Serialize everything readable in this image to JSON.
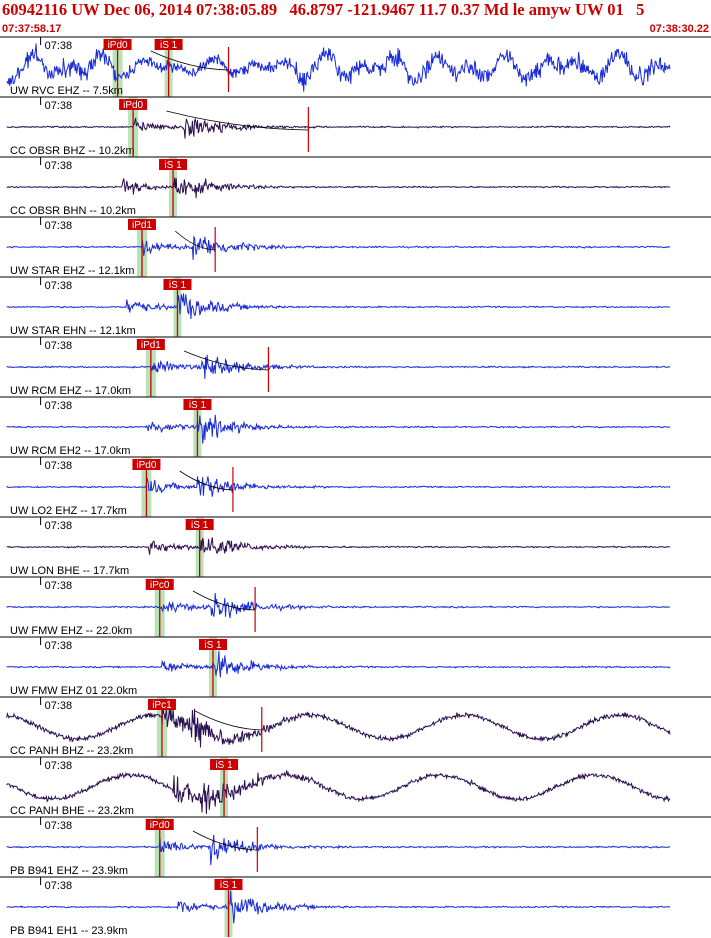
{
  "header": {
    "title": "60942116 UW Dec 06, 2014 07:38:05.89   46.8797 -121.9467 11.7 0.37 Md le amyw UW 01   5",
    "start_time": "07:37:58.17",
    "end_time": "07:38:30.22"
  },
  "chart_data": {
    "type": "line",
    "title": "60942116 UW Dec 06, 2014 07:38:05.89   46.8797 -121.9467 11.7 0.37 Md le amyw UW 01   5",
    "x_range": [
      "07:37:58.17",
      "07:38:30.22"
    ],
    "tick_label": "07:38",
    "colors": {
      "broadband": "#2a1050",
      "short_period": "#1a2bd8",
      "pick": "#cc0000",
      "window": "#b8e2b8"
    },
    "traces": [
      {
        "label": "UW RVC EHZ -- 7.5km",
        "tick": "07:38",
        "color": "broadband_blue",
        "p_pick": {
          "label": "iPd0",
          "t": 5.3
        },
        "s_pick": {
          "label": "iS 1",
          "t": 7.6
        },
        "coda_end": 10.3
      },
      {
        "label": "CC OBSR BHZ -- 10.2km",
        "tick": "07:38",
        "color": "broadband",
        "p_pick": {
          "label": "iPd0",
          "t": 6.0
        },
        "coda_end": 13.9
      },
      {
        "label": "CC OBSR BHN -- 10.2km",
        "tick": "07:38",
        "color": "broadband",
        "s_pick": {
          "label": "iS 1",
          "t": 7.8
        }
      },
      {
        "label": "UW STAR EHZ -- 12.1km",
        "tick": "07:38",
        "color": "short_period",
        "p_pick": {
          "label": "iPd1",
          "t": 6.4
        },
        "coda_end": 9.7
      },
      {
        "label": "UW STAR EHN -- 12.1km",
        "tick": "07:38",
        "color": "short_period",
        "s_pick": {
          "label": "iS 1",
          "t": 8.0
        }
      },
      {
        "label": "UW RCM EHZ -- 17.0km",
        "tick": "07:38",
        "color": "short_period",
        "p_pick": {
          "label": "iPd1",
          "t": 6.8
        },
        "coda_end": 12.1
      },
      {
        "label": "UW RCM EH2 -- 17.0km",
        "tick": "07:38",
        "color": "short_period",
        "s_pick": {
          "label": "iS 1",
          "t": 8.9
        }
      },
      {
        "label": "UW LO2 EHZ -- 17.7km",
        "tick": "07:38",
        "color": "short_period",
        "p_pick": {
          "label": "iPd0",
          "t": 6.6
        },
        "coda_end": 10.5
      },
      {
        "label": "UW LON BHE -- 17.7km",
        "tick": "07:38",
        "color": "broadband",
        "s_pick": {
          "label": "iS 1",
          "t": 9.0
        }
      },
      {
        "label": "UW FMW EHZ -- 22.0km",
        "tick": "07:38",
        "color": "short_period",
        "p_pick": {
          "label": "iPc0",
          "t": 7.2
        },
        "coda_end": 11.5
      },
      {
        "label": "UW FMW EHZ 01 22.0km",
        "tick": "07:38",
        "color": "short_period",
        "s_pick": {
          "label": "iS 1",
          "t": 9.6
        }
      },
      {
        "label": "CC PANH BHZ -- 23.2km",
        "tick": "07:38",
        "color": "broadband",
        "p_pick": {
          "label": "iPc1",
          "t": 7.3
        },
        "coda_end": 11.8
      },
      {
        "label": "CC PANH BHE -- 23.2km",
        "tick": "07:38",
        "color": "broadband",
        "s_pick": {
          "label": "iS 1",
          "t": 10.1
        }
      },
      {
        "label": "PB B941 EHZ -- 23.9km",
        "tick": "07:38",
        "color": "short_period",
        "p_pick": {
          "label": "iPd0",
          "t": 7.2
        },
        "coda_end": 11.6
      },
      {
        "label": "PB B941 EH1 -- 23.9km",
        "tick": "07:38",
        "color": "short_period",
        "s_pick": {
          "label": "iS 1",
          "t": 10.3
        }
      }
    ]
  }
}
